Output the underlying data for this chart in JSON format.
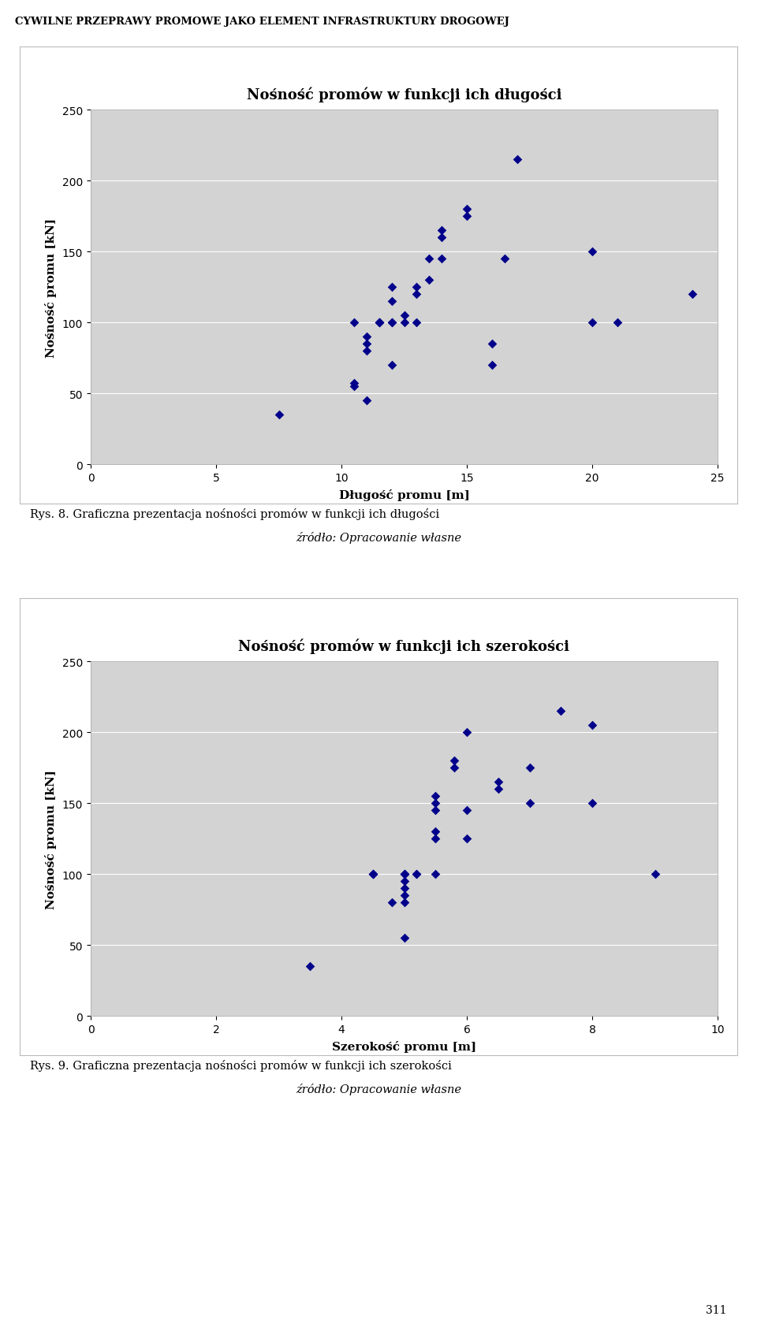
{
  "chart1": {
    "title": "Nośność promów w funkcji ich długości",
    "xlabel": "Długość promu [m]",
    "ylabel": "Nośność promu [kN]",
    "xlim": [
      0,
      25
    ],
    "ylim": [
      0,
      250
    ],
    "xticks": [
      0,
      5,
      10,
      15,
      20,
      25
    ],
    "yticks": [
      0,
      50,
      100,
      150,
      200,
      250
    ],
    "x": [
      7.5,
      10.5,
      10.5,
      10.5,
      11,
      11,
      11,
      11,
      11.5,
      11.5,
      11.5,
      12,
      12,
      12,
      12,
      12,
      12.5,
      12.5,
      13,
      13,
      13,
      13.5,
      13.5,
      14,
      14,
      14,
      15,
      15,
      16,
      16,
      16.5,
      17,
      20,
      20,
      21,
      24
    ],
    "y": [
      35,
      55,
      57,
      100,
      45,
      80,
      85,
      90,
      100,
      100,
      100,
      70,
      100,
      100,
      115,
      125,
      100,
      105,
      100,
      120,
      125,
      130,
      145,
      145,
      160,
      165,
      175,
      180,
      85,
      70,
      145,
      215,
      150,
      100,
      100,
      120
    ],
    "marker_color": "#00008B",
    "caption_number": "Rys. 8.",
    "caption_text": "Graficzna prezentacja nośności promów w funkcji ich długości",
    "source_text": "źródło: Opracowanie własne"
  },
  "chart2": {
    "title": "Nośność promów w funkcji ich szerokości",
    "xlabel": "Szerokość promu [m]",
    "ylabel": "Nośność promu [kN]",
    "xlim": [
      0,
      10
    ],
    "ylim": [
      0,
      250
    ],
    "xticks": [
      0,
      2,
      4,
      6,
      8,
      10
    ],
    "yticks": [
      0,
      50,
      100,
      150,
      200,
      250
    ],
    "x": [
      3.5,
      4.5,
      4.5,
      4.5,
      4.8,
      5.0,
      5.0,
      5.0,
      5.0,
      5.0,
      5.0,
      5.0,
      5.0,
      5.2,
      5.2,
      5.5,
      5.5,
      5.5,
      5.5,
      5.5,
      5.5,
      5.8,
      5.8,
      6.0,
      6.0,
      6.0,
      6.5,
      6.5,
      7.0,
      7.0,
      7.5,
      8.0,
      8.0,
      9.0
    ],
    "y": [
      35,
      100,
      100,
      100,
      80,
      55,
      80,
      85,
      90,
      95,
      100,
      100,
      100,
      100,
      100,
      100,
      125,
      130,
      145,
      150,
      155,
      175,
      180,
      125,
      200,
      145,
      160,
      165,
      150,
      175,
      215,
      150,
      205,
      100
    ],
    "marker_color": "#00008B",
    "caption_number": "Rys. 9.",
    "caption_text": "Graficzna prezentacja nośności promów w funkcji ich szerokości",
    "source_text": "źródło: Opracowanie własne"
  },
  "page_title": "CYWILNE PRZEPRAWY PROMOWE JAKO ELEMENT INFRASTRUKTURY DROGOWEJ",
  "page_number": "311",
  "bg_color": "#ffffff",
  "plot_bg_color": "#d3d3d3",
  "frame_bg_color": "#ffffff",
  "border_color": "#aaaaaa",
  "title_fontsize": 13,
  "axis_label_fontsize": 11,
  "tick_fontsize": 10,
  "caption_fontsize": 10.5,
  "source_fontsize": 10.5
}
